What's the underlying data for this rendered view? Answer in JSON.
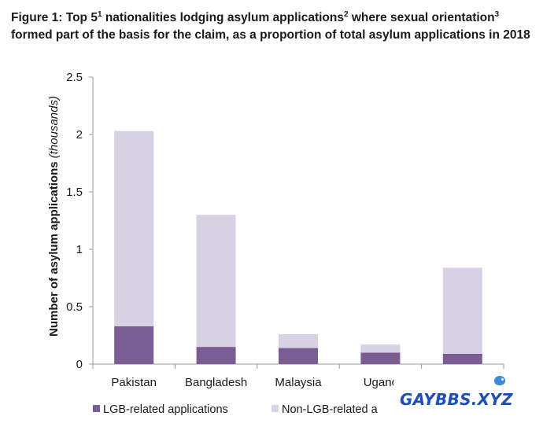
{
  "title": {
    "part1": "Figure 1: Top 5",
    "sup1": "1",
    "part2": " nationalities lodging asylum applications",
    "sup2": "2",
    "part3": " where sexual orientation",
    "sup3": "3",
    "part4": " formed part of the basis for the claim, as a proportion of total asylum applications in 2018"
  },
  "colors": {
    "lgb": "#7a5e93",
    "non_lgb": "#d8d0e3",
    "axis": "#9a9a9a"
  },
  "chart_data": {
    "type": "bar",
    "stacked": true,
    "categories": [
      "Pakistan",
      "Bangladesh",
      "Malaysia",
      "Uganc",
      ""
    ],
    "series": [
      {
        "name": "LGB-related applications",
        "values": [
          0.33,
          0.15,
          0.14,
          0.1,
          0.09
        ]
      },
      {
        "name": "Non-LGB-related a",
        "values": [
          1.7,
          1.15,
          0.12,
          0.07,
          0.75
        ]
      }
    ],
    "ylabel": "Number of asylum applications",
    "ylabel_unit": "(thousands)",
    "ylim": [
      0,
      2.5
    ],
    "yticks": [
      "0",
      "0.5",
      "1",
      "1.5",
      "2",
      "2.5"
    ],
    "ytick_values": [
      0,
      0.5,
      1,
      1.5,
      2,
      2.5
    ],
    "grid": false,
    "legend_position": "bottom"
  },
  "watermark": {
    "text": "GAYBBS.XYZ"
  }
}
